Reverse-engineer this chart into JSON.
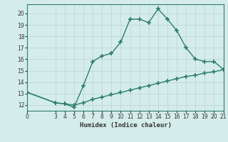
{
  "upper_x": [
    0,
    3,
    4,
    5,
    6,
    7,
    8,
    9,
    10,
    11,
    12,
    13,
    14,
    15,
    16,
    17,
    18,
    19,
    20,
    21
  ],
  "upper_y": [
    13.1,
    12.2,
    12.1,
    11.8,
    13.7,
    15.8,
    16.3,
    16.5,
    17.5,
    19.5,
    19.5,
    19.2,
    20.4,
    19.5,
    18.5,
    17.0,
    16.0,
    15.8,
    15.8,
    15.1
  ],
  "lower_x": [
    0,
    3,
    4,
    5,
    6,
    7,
    8,
    9,
    10,
    11,
    12,
    13,
    14,
    15,
    16,
    17,
    18,
    19,
    20,
    21
  ],
  "lower_y": [
    13.1,
    12.2,
    12.1,
    12.0,
    12.2,
    12.5,
    12.7,
    12.9,
    13.1,
    13.3,
    13.5,
    13.7,
    13.9,
    14.1,
    14.3,
    14.5,
    14.6,
    14.8,
    14.9,
    15.1
  ],
  "xlim": [
    0,
    21
  ],
  "ylim": [
    11.5,
    20.8
  ],
  "yticks": [
    12,
    13,
    14,
    15,
    16,
    17,
    18,
    19,
    20
  ],
  "xticks": [
    0,
    3,
    4,
    5,
    6,
    7,
    8,
    9,
    10,
    11,
    12,
    13,
    14,
    15,
    16,
    17,
    18,
    19,
    20,
    21
  ],
  "xlabel": "Humidex (Indice chaleur)",
  "line_color": "#2e7d6e",
  "bg_color": "#d4edea",
  "grid_color": "#c0d8d4",
  "marker": "+",
  "markersize": 4,
  "linewidth": 1.0
}
